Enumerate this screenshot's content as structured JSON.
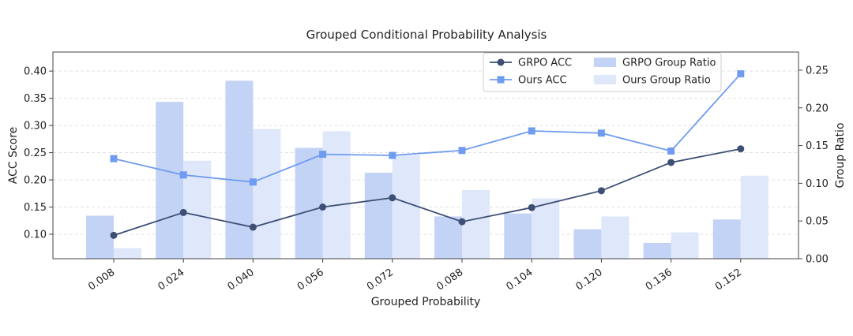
{
  "chart_data": {
    "type": "bar",
    "title": "Grouped Conditional Probability Analysis",
    "xlabel": "Grouped Probability",
    "ylabel": "ACC Score",
    "y2label": "Group Ratio",
    "categories": [
      "0.008",
      "0.024",
      "0.040",
      "0.056",
      "0.072",
      "0.088",
      "0.104",
      "0.120",
      "0.136",
      "0.152"
    ],
    "ylim": [
      0.055,
      0.435
    ],
    "y_ticks": [
      "0.10",
      "0.15",
      "0.20",
      "0.25",
      "0.30",
      "0.35",
      "0.40"
    ],
    "y2lim": [
      0.0,
      0.274
    ],
    "y2_ticks": [
      "0.00",
      "0.05",
      "0.10",
      "0.15",
      "0.20",
      "0.25"
    ],
    "grid": true,
    "legend_position": "top-right",
    "series": [
      {
        "name": "GRPO ACC",
        "kind": "line",
        "axis": "left",
        "color": "#3d4f75",
        "marker": "circle",
        "values": [
          0.098,
          0.14,
          0.113,
          0.15,
          0.167,
          0.123,
          0.149,
          0.18,
          0.232,
          0.257
        ]
      },
      {
        "name": "Ours ACC",
        "kind": "line",
        "axis": "left",
        "color": "#6f9cf0",
        "marker": "square",
        "values": [
          0.239,
          0.209,
          0.196,
          0.247,
          0.245,
          0.254,
          0.29,
          0.286,
          0.253,
          0.395
        ]
      },
      {
        "name": "GRPO Group Ratio",
        "kind": "bar",
        "axis": "right",
        "color": "#c3d3f6",
        "values": [
          0.057,
          0.208,
          0.236,
          0.147,
          0.114,
          0.056,
          0.06,
          0.039,
          0.021,
          0.052
        ]
      },
      {
        "name": "Ours Group Ratio",
        "kind": "bar",
        "axis": "right",
        "color": "#dfe7fa",
        "values": [
          0.014,
          0.13,
          0.172,
          0.169,
          0.137,
          0.091,
          0.08,
          0.056,
          0.035,
          0.11
        ]
      }
    ]
  }
}
